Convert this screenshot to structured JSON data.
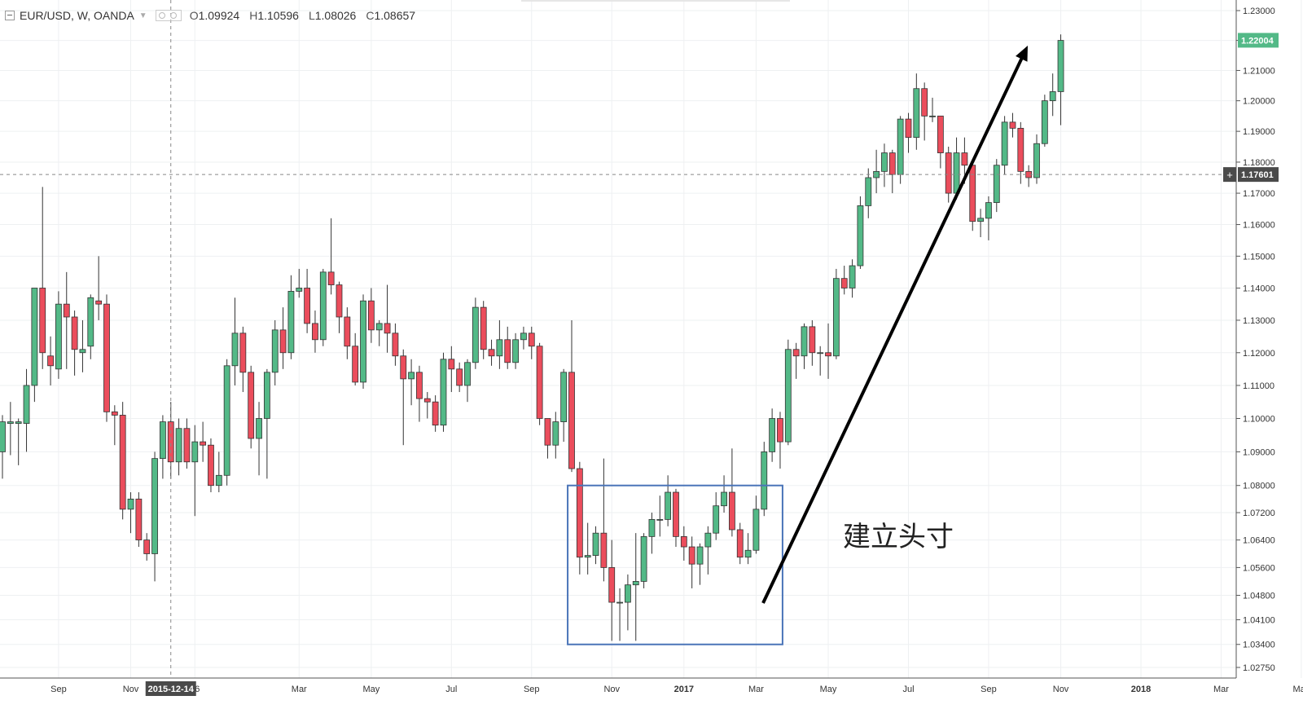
{
  "legend": {
    "symbol": "EUR/USD, W, OANDA",
    "open_label": "O",
    "open": "1.09924",
    "high_label": "H",
    "high": "1.10596",
    "low_label": "L",
    "low": "1.08026",
    "close_label": "C",
    "close": "1.08657"
  },
  "annotation": {
    "text": "建立头寸"
  },
  "crosshair": {
    "date_label": "2015-12-14",
    "price_label": "1.17601",
    "price": 1.17601
  },
  "last_price": {
    "label": "1.22004",
    "value": 1.22004
  },
  "colors": {
    "up": "#53b987",
    "down": "#eb4d5c",
    "box": "#4a74b8",
    "arrow": "#000000",
    "grid": "#eef0f2"
  },
  "chart_data": {
    "type": "candlestick",
    "title": "",
    "scale": "log",
    "y_ticks": [
      "1.23000",
      "1.22000",
      "1.21000",
      "1.20000",
      "1.19000",
      "1.18000",
      "1.17000",
      "1.16000",
      "1.15000",
      "1.14000",
      "1.13000",
      "1.12000",
      "1.11000",
      "1.10000",
      "1.09000",
      "1.08000",
      "1.07200",
      "1.06400",
      "1.05600",
      "1.04800",
      "1.04100",
      "1.03400",
      "1.02750"
    ],
    "y_tick_values": [
      1.23,
      1.22,
      1.21,
      1.2,
      1.19,
      1.18,
      1.17,
      1.16,
      1.15,
      1.14,
      1.13,
      1.12,
      1.11,
      1.1,
      1.09,
      1.08,
      1.072,
      1.064,
      1.056,
      1.048,
      1.041,
      1.034,
      1.0275
    ],
    "x_ticks": [
      {
        "label": "Sep",
        "week": 7
      },
      {
        "label": "Nov",
        "week": 16
      },
      {
        "label": "16",
        "week": 24
      },
      {
        "label": "Mar",
        "week": 37
      },
      {
        "label": "May",
        "week": 46
      },
      {
        "label": "Jul",
        "week": 56
      },
      {
        "label": "Sep",
        "week": 66
      },
      {
        "label": "Nov",
        "week": 76
      },
      {
        "label": "2017",
        "week": 85
      },
      {
        "label": "Mar",
        "week": 94
      },
      {
        "label": "May",
        "week": 103
      },
      {
        "label": "Jul",
        "week": 113
      },
      {
        "label": "Sep",
        "week": 123
      },
      {
        "label": "Nov",
        "week": 132
      },
      {
        "label": "2018",
        "week": 142
      },
      {
        "label": "Mar",
        "week": 152
      },
      {
        "label": "May",
        "week": 162
      }
    ],
    "candles": [
      [
        1.09,
        1.099,
        1.082,
        1.101
      ],
      [
        1.0985,
        1.099,
        1.089,
        1.105
      ],
      [
        1.0985,
        1.099,
        1.086,
        1.1
      ],
      [
        1.0985,
        1.11,
        1.09,
        1.115
      ],
      [
        1.11,
        1.14,
        1.105,
        1.14
      ],
      [
        1.14,
        1.12,
        1.115,
        1.172
      ],
      [
        1.119,
        1.116,
        1.11,
        1.125
      ],
      [
        1.115,
        1.135,
        1.112,
        1.139
      ],
      [
        1.135,
        1.131,
        1.115,
        1.145
      ],
      [
        1.131,
        1.121,
        1.113,
        1.133
      ],
      [
        1.12,
        1.121,
        1.114,
        1.13
      ],
      [
        1.122,
        1.137,
        1.118,
        1.138
      ],
      [
        1.136,
        1.135,
        1.13,
        1.15
      ],
      [
        1.135,
        1.102,
        1.099,
        1.138
      ],
      [
        1.102,
        1.101,
        1.092,
        1.104
      ],
      [
        1.101,
        1.073,
        1.07,
        1.105
      ],
      [
        1.073,
        1.076,
        1.066,
        1.078
      ],
      [
        1.076,
        1.064,
        1.062,
        1.078
      ],
      [
        1.064,
        1.06,
        1.058,
        1.066
      ],
      [
        1.06,
        1.088,
        1.052,
        1.09
      ],
      [
        1.088,
        1.099,
        1.082,
        1.101
      ],
      [
        1.099,
        1.087,
        1.082,
        1.105
      ],
      [
        1.087,
        1.097,
        1.083,
        1.1
      ],
      [
        1.097,
        1.087,
        1.085,
        1.1
      ],
      [
        1.087,
        1.093,
        1.071,
        1.098
      ],
      [
        1.093,
        1.092,
        1.087,
        1.099
      ],
      [
        1.092,
        1.08,
        1.078,
        1.094
      ],
      [
        1.08,
        1.083,
        1.078,
        1.09
      ],
      [
        1.083,
        1.116,
        1.08,
        1.118
      ],
      [
        1.116,
        1.126,
        1.11,
        1.137
      ],
      [
        1.126,
        1.114,
        1.108,
        1.128
      ],
      [
        1.114,
        1.094,
        1.091,
        1.116
      ],
      [
        1.094,
        1.1,
        1.083,
        1.105
      ],
      [
        1.1,
        1.114,
        1.082,
        1.115
      ],
      [
        1.114,
        1.127,
        1.11,
        1.13
      ],
      [
        1.127,
        1.12,
        1.115,
        1.134
      ],
      [
        1.12,
        1.139,
        1.118,
        1.144
      ],
      [
        1.139,
        1.14,
        1.137,
        1.146
      ],
      [
        1.14,
        1.129,
        1.126,
        1.146
      ],
      [
        1.129,
        1.124,
        1.12,
        1.133
      ],
      [
        1.124,
        1.145,
        1.122,
        1.146
      ],
      [
        1.145,
        1.141,
        1.138,
        1.162
      ],
      [
        1.141,
        1.131,
        1.126,
        1.142
      ],
      [
        1.131,
        1.122,
        1.118,
        1.134
      ],
      [
        1.122,
        1.111,
        1.11,
        1.126
      ],
      [
        1.111,
        1.136,
        1.109,
        1.138
      ],
      [
        1.136,
        1.127,
        1.123,
        1.14
      ],
      [
        1.127,
        1.129,
        1.122,
        1.13
      ],
      [
        1.129,
        1.126,
        1.12,
        1.141
      ],
      [
        1.126,
        1.119,
        1.116,
        1.129
      ],
      [
        1.119,
        1.112,
        1.092,
        1.121
      ],
      [
        1.112,
        1.114,
        1.104,
        1.118
      ],
      [
        1.114,
        1.106,
        1.099,
        1.116
      ],
      [
        1.106,
        1.105,
        1.1,
        1.108
      ],
      [
        1.105,
        1.098,
        1.096,
        1.107
      ],
      [
        1.098,
        1.118,
        1.096,
        1.12
      ],
      [
        1.118,
        1.115,
        1.108,
        1.122
      ],
      [
        1.115,
        1.11,
        1.108,
        1.117
      ],
      [
        1.11,
        1.117,
        1.105,
        1.118
      ],
      [
        1.117,
        1.134,
        1.115,
        1.137
      ],
      [
        1.134,
        1.121,
        1.118,
        1.136
      ],
      [
        1.121,
        1.119,
        1.116,
        1.124
      ],
      [
        1.119,
        1.124,
        1.115,
        1.13
      ],
      [
        1.124,
        1.117,
        1.115,
        1.128
      ],
      [
        1.117,
        1.124,
        1.115,
        1.126
      ],
      [
        1.124,
        1.126,
        1.121,
        1.128
      ],
      [
        1.126,
        1.122,
        1.118,
        1.128
      ],
      [
        1.122,
        1.1,
        1.098,
        1.123
      ],
      [
        1.1,
        1.092,
        1.088,
        1.1
      ],
      [
        1.092,
        1.099,
        1.088,
        1.102
      ],
      [
        1.099,
        1.114,
        1.093,
        1.115
      ],
      [
        1.114,
        1.085,
        1.084,
        1.13
      ],
      [
        1.085,
        1.059,
        1.054,
        1.087
      ],
      [
        1.059,
        1.0595,
        1.054,
        1.069
      ],
      [
        1.0595,
        1.066,
        1.057,
        1.068
      ],
      [
        1.066,
        1.056,
        1.052,
        1.088
      ],
      [
        1.056,
        1.046,
        1.035,
        1.064
      ],
      [
        1.046,
        1.046,
        1.035,
        1.05
      ],
      [
        1.046,
        1.051,
        1.038,
        1.054
      ],
      [
        1.051,
        1.052,
        1.035,
        1.066
      ],
      [
        1.052,
        1.065,
        1.05,
        1.066
      ],
      [
        1.065,
        1.07,
        1.06,
        1.072
      ],
      [
        1.07,
        1.07,
        1.065,
        1.077
      ],
      [
        1.07,
        1.078,
        1.068,
        1.083
      ],
      [
        1.078,
        1.065,
        1.062,
        1.079
      ],
      [
        1.065,
        1.062,
        1.058,
        1.068
      ],
      [
        1.062,
        1.057,
        1.05,
        1.065
      ],
      [
        1.057,
        1.062,
        1.051,
        1.063
      ],
      [
        1.062,
        1.066,
        1.054,
        1.068
      ],
      [
        1.066,
        1.074,
        1.064,
        1.078
      ],
      [
        1.074,
        1.078,
        1.072,
        1.083
      ],
      [
        1.078,
        1.067,
        1.065,
        1.091
      ],
      [
        1.067,
        1.059,
        1.057,
        1.069
      ],
      [
        1.059,
        1.061,
        1.057,
        1.066
      ],
      [
        1.061,
        1.073,
        1.06,
        1.077
      ],
      [
        1.073,
        1.09,
        1.071,
        1.093
      ],
      [
        1.09,
        1.1,
        1.087,
        1.103
      ],
      [
        1.1,
        1.093,
        1.085,
        1.102
      ],
      [
        1.093,
        1.121,
        1.092,
        1.124
      ],
      [
        1.121,
        1.119,
        1.112,
        1.123
      ],
      [
        1.119,
        1.128,
        1.115,
        1.129
      ],
      [
        1.128,
        1.12,
        1.116,
        1.13
      ],
      [
        1.12,
        1.12,
        1.113,
        1.122
      ],
      [
        1.12,
        1.119,
        1.112,
        1.129
      ],
      [
        1.119,
        1.143,
        1.118,
        1.146
      ],
      [
        1.143,
        1.14,
        1.138,
        1.147
      ],
      [
        1.14,
        1.147,
        1.137,
        1.149
      ],
      [
        1.147,
        1.166,
        1.146,
        1.169
      ],
      [
        1.166,
        1.175,
        1.162,
        1.178
      ],
      [
        1.175,
        1.177,
        1.17,
        1.184
      ],
      [
        1.177,
        1.183,
        1.172,
        1.186
      ],
      [
        1.183,
        1.176,
        1.17,
        1.184
      ],
      [
        1.176,
        1.194,
        1.173,
        1.195
      ],
      [
        1.194,
        1.188,
        1.183,
        1.196
      ],
      [
        1.188,
        1.204,
        1.184,
        1.209
      ],
      [
        1.204,
        1.195,
        1.187,
        1.206
      ],
      [
        1.195,
        1.195,
        1.193,
        1.201
      ],
      [
        1.195,
        1.183,
        1.178,
        1.195
      ],
      [
        1.183,
        1.17,
        1.167,
        1.185
      ],
      [
        1.17,
        1.183,
        1.168,
        1.188
      ],
      [
        1.183,
        1.179,
        1.173,
        1.188
      ],
      [
        1.179,
        1.161,
        1.158,
        1.18
      ],
      [
        1.161,
        1.162,
        1.156,
        1.165
      ],
      [
        1.162,
        1.167,
        1.155,
        1.169
      ],
      [
        1.167,
        1.179,
        1.164,
        1.181
      ],
      [
        1.179,
        1.193,
        1.176,
        1.195
      ],
      [
        1.193,
        1.191,
        1.188,
        1.196
      ],
      [
        1.191,
        1.177,
        1.173,
        1.193
      ],
      [
        1.177,
        1.175,
        1.172,
        1.179
      ],
      [
        1.175,
        1.186,
        1.173,
        1.189
      ],
      [
        1.186,
        1.2,
        1.185,
        1.202
      ],
      [
        1.2,
        1.203,
        1.195,
        1.209
      ],
      [
        1.203,
        1.22,
        1.192,
        1.222
      ]
    ]
  }
}
